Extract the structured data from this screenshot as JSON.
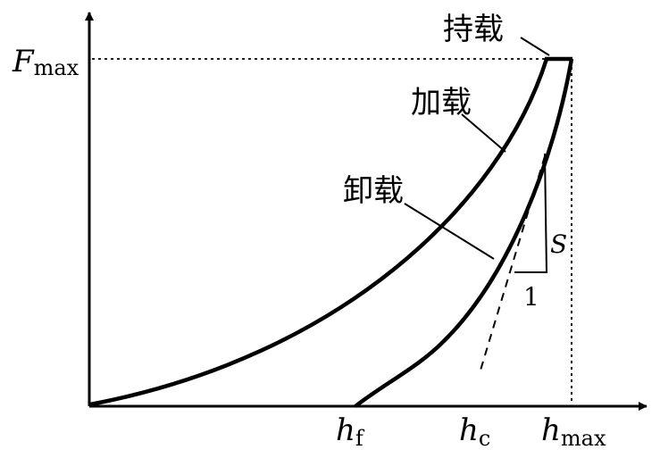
{
  "labels": {
    "hold": "持载",
    "loading": "加载",
    "unloading": "卸载",
    "stiffness": "S",
    "slope_unit": "1"
  },
  "axes": {
    "y_symbol": "F",
    "y_subscript": "max",
    "x_ticks": [
      {
        "symbol": "h",
        "subscript": "f"
      },
      {
        "symbol": "h",
        "subscript": "c"
      },
      {
        "symbol": "h",
        "subscript": "max"
      }
    ]
  }
}
